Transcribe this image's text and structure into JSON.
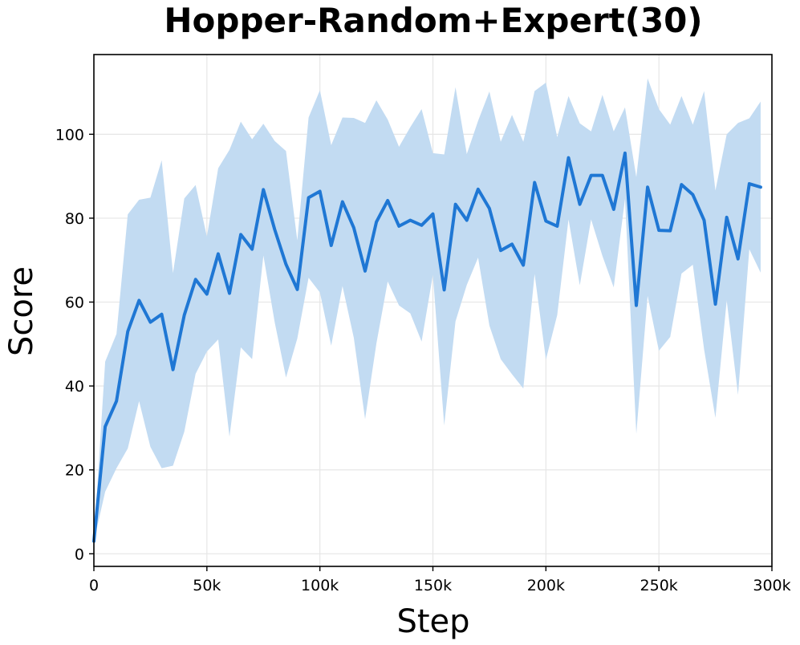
{
  "chart_data": {
    "type": "line",
    "title": "Hopper-Random+Expert(30)",
    "xlabel": "Step",
    "ylabel": "Score",
    "xlim": [
      0,
      300000
    ],
    "ylim": [
      -3,
      119
    ],
    "grid": true,
    "x_ticks": [
      {
        "value": 0,
        "label": "0"
      },
      {
        "value": 50000,
        "label": "50k"
      },
      {
        "value": 100000,
        "label": "100k"
      },
      {
        "value": 150000,
        "label": "150k"
      },
      {
        "value": 200000,
        "label": "200k"
      },
      {
        "value": 250000,
        "label": "250k"
      },
      {
        "value": 300000,
        "label": "300k"
      }
    ],
    "y_ticks": [
      {
        "value": 0,
        "label": "0"
      },
      {
        "value": 20,
        "label": "20"
      },
      {
        "value": 40,
        "label": "40"
      },
      {
        "value": 60,
        "label": "60"
      },
      {
        "value": 80,
        "label": "80"
      },
      {
        "value": 100,
        "label": "100"
      }
    ],
    "colors": {
      "line": "#1f77d4",
      "band": "#c2dbf2",
      "grid": "#e6e6e6",
      "axes": "#000000"
    },
    "series": [
      {
        "x": [
          0,
          5000,
          10000,
          15000,
          20000,
          25000,
          30000,
          35000,
          40000,
          45000,
          50000,
          55000,
          60000,
          65000,
          70000,
          75000,
          80000,
          85000,
          90000,
          95000,
          100000,
          105000,
          110000,
          115000,
          120000,
          125000,
          130000,
          135000,
          140000,
          145000,
          150000,
          155000,
          160000,
          165000,
          170000,
          175000,
          180000,
          185000,
          190000,
          195000,
          200000,
          205000,
          210000,
          215000,
          220000,
          225000,
          230000,
          235000,
          240000,
          245000,
          250000,
          255000,
          260000,
          265000,
          270000,
          275000,
          280000,
          285000,
          290000,
          295000
        ],
        "mean": [
          3.0,
          30.3,
          36.4,
          53.0,
          60.4,
          55.2,
          57.1,
          43.9,
          56.9,
          65.4,
          61.9,
          71.5,
          62.1,
          76.1,
          72.6,
          86.8,
          77.3,
          69.0,
          63.0,
          84.9,
          86.4,
          73.5,
          83.9,
          77.7,
          67.4,
          79.1,
          84.2,
          78.1,
          79.5,
          78.3,
          81.0,
          62.9,
          83.3,
          79.5,
          86.9,
          82.3,
          72.3,
          73.8,
          68.8,
          88.5,
          79.3,
          78.1,
          94.4,
          83.3,
          90.2,
          90.2,
          82.1,
          95.5,
          59.2,
          87.4,
          77.1,
          77.0,
          88.0,
          85.6,
          79.5,
          59.5,
          80.2,
          70.3,
          88.2,
          87.4
        ],
        "upper": [
          3.0,
          45.8,
          52.4,
          80.9,
          84.4,
          84.9,
          93.8,
          66.9,
          84.7,
          87.9,
          75.6,
          91.9,
          96.3,
          103.0,
          98.8,
          102.5,
          98.4,
          96.0,
          74.7,
          104.0,
          110.5,
          97.4,
          104.0,
          103.9,
          102.7,
          108.1,
          103.5,
          97.0,
          101.7,
          106.0,
          95.5,
          95.2,
          111.2,
          95.3,
          103.2,
          110.2,
          98.2,
          104.6,
          98.2,
          110.3,
          112.3,
          99.3,
          109.1,
          102.6,
          100.7,
          109.4,
          100.7,
          106.4,
          89.8,
          113.3,
          106.0,
          102.3,
          109.1,
          102.3,
          110.3,
          86.6,
          100.0,
          102.7,
          103.8,
          107.8
        ],
        "lower": [
          3.0,
          14.8,
          20.4,
          25.1,
          36.4,
          25.5,
          20.4,
          21.0,
          29.1,
          42.9,
          48.2,
          51.1,
          27.9,
          49.2,
          46.4,
          71.1,
          55.2,
          42.0,
          51.3,
          65.8,
          62.3,
          49.6,
          63.8,
          51.5,
          32.1,
          50.1,
          64.9,
          59.2,
          57.3,
          50.6,
          66.5,
          30.6,
          55.4,
          64.1,
          70.6,
          54.4,
          46.4,
          42.8,
          39.4,
          66.7,
          46.3,
          56.9,
          79.7,
          64.0,
          79.7,
          71.0,
          63.5,
          84.6,
          28.6,
          61.5,
          48.4,
          51.7,
          66.8,
          68.9,
          48.7,
          32.4,
          60.4,
          37.9,
          72.6,
          67.0
        ]
      }
    ]
  }
}
